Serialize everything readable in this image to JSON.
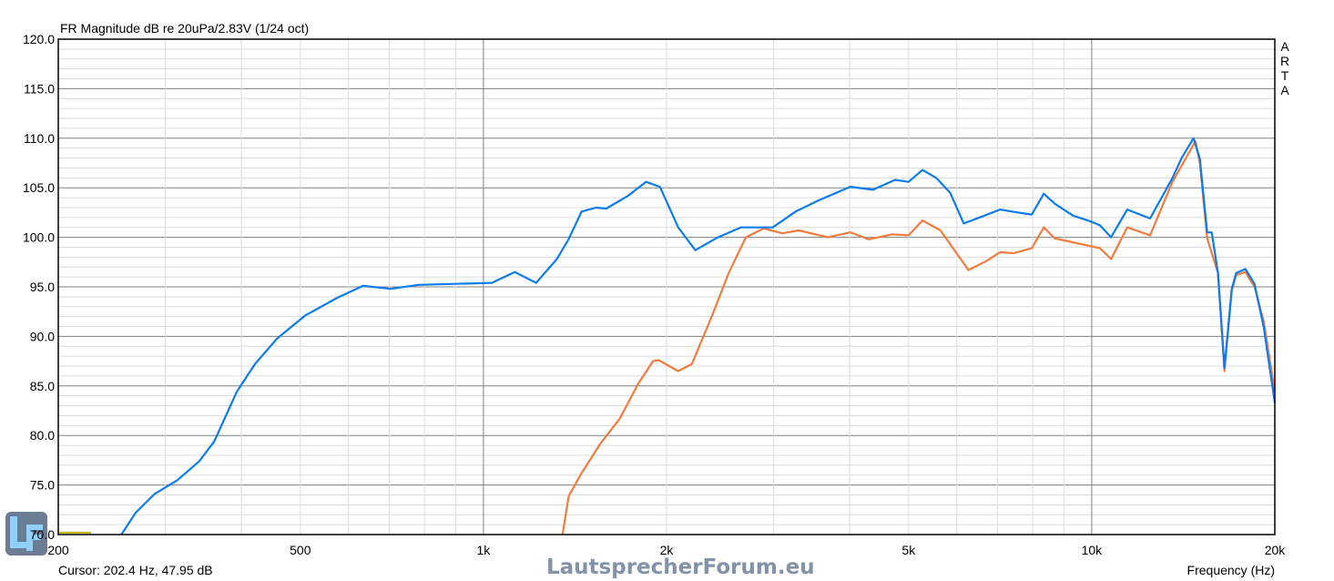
{
  "chart_data": {
    "type": "line",
    "title": "FR Magnitude dB re 20uPa/2.83V (1/24 oct)",
    "xlabel": "Frequency (Hz)",
    "ylabel": "",
    "x_scale": "log",
    "xlim": [
      200,
      20000
    ],
    "ylim": [
      70,
      120
    ],
    "grid": true,
    "x_ticks": [
      200,
      500,
      1000,
      2000,
      5000,
      10000,
      20000
    ],
    "x_tick_labels": [
      "200",
      "500",
      "1k",
      "2k",
      "5k",
      "10k",
      "20k"
    ],
    "y_ticks": [
      70,
      75,
      80,
      85,
      90,
      95,
      100,
      105,
      110,
      115,
      120
    ],
    "y_tick_labels": [
      "70.0",
      "75.0",
      "80.0",
      "85.0",
      "90.0",
      "95.0",
      "100.0",
      "105.0",
      "110.0",
      "115.0",
      "120.0"
    ],
    "watermark": "ARTA",
    "cursor_readout": "Cursor: 202.4 Hz, 47.95 dB",
    "series": [
      {
        "color": "#0a7cf0",
        "points": [
          [
            254,
            70
          ],
          [
            268,
            72.2
          ],
          [
            288,
            74.1
          ],
          [
            314,
            75.5
          ],
          [
            341,
            77.4
          ],
          [
            361,
            79.4
          ],
          [
            393,
            84.4
          ],
          [
            421,
            87.2
          ],
          [
            458,
            89.8
          ],
          [
            509,
            92.1
          ],
          [
            575,
            93.9
          ],
          [
            634,
            95.1
          ],
          [
            704,
            94.8
          ],
          [
            782,
            95.2
          ],
          [
            898,
            95.3
          ],
          [
            1032,
            95.4
          ],
          [
            1126,
            96.5
          ],
          [
            1221,
            95.4
          ],
          [
            1320,
            97.8
          ],
          [
            1380,
            99.8
          ],
          [
            1450,
            102.6
          ],
          [
            1531,
            103
          ],
          [
            1592,
            102.9
          ],
          [
            1730,
            104.2
          ],
          [
            1850,
            105.6
          ],
          [
            1950,
            105.1
          ],
          [
            2090,
            101
          ],
          [
            2230,
            98.7
          ],
          [
            2430,
            100
          ],
          [
            2650,
            101
          ],
          [
            2990,
            101
          ],
          [
            3260,
            102.6
          ],
          [
            3550,
            103.7
          ],
          [
            4010,
            105.1
          ],
          [
            4370,
            104.8
          ],
          [
            4750,
            105.8
          ],
          [
            5000,
            105.6
          ],
          [
            5270,
            106.8
          ],
          [
            5550,
            106
          ],
          [
            5850,
            104.5
          ],
          [
            6160,
            101.4
          ],
          [
            6600,
            102.1
          ],
          [
            7070,
            102.8
          ],
          [
            7570,
            102.5
          ],
          [
            7970,
            102.3
          ],
          [
            8340,
            104.4
          ],
          [
            8690,
            103.4
          ],
          [
            9310,
            102.2
          ],
          [
            9970,
            101.6
          ],
          [
            10320,
            101.2
          ],
          [
            10760,
            100
          ],
          [
            11440,
            102.8
          ],
          [
            12470,
            101.9
          ],
          [
            13580,
            106
          ],
          [
            14050,
            108
          ],
          [
            14700,
            110
          ],
          [
            15060,
            107.9
          ],
          [
            15480,
            100.5
          ],
          [
            15750,
            100.5
          ],
          [
            16130,
            96.4
          ],
          [
            16530,
            86.8
          ],
          [
            16990,
            94.8
          ],
          [
            17280,
            96.4
          ],
          [
            17890,
            96.8
          ],
          [
            18520,
            95.3
          ],
          [
            19180,
            90.9
          ],
          [
            20000,
            83.3
          ]
        ]
      },
      {
        "color": "#f47b3c",
        "points": [
          [
            1349,
            70
          ],
          [
            1381,
            73.9
          ],
          [
            1450,
            76.2
          ],
          [
            1558,
            79.2
          ],
          [
            1675,
            81.7
          ],
          [
            1800,
            85.3
          ],
          [
            1900,
            87.5
          ],
          [
            1940,
            87.6
          ],
          [
            2090,
            86.5
          ],
          [
            2200,
            87.2
          ],
          [
            2380,
            92.2
          ],
          [
            2530,
            96.4
          ],
          [
            2700,
            100
          ],
          [
            2890,
            100.9
          ],
          [
            3100,
            100.4
          ],
          [
            3300,
            100.7
          ],
          [
            3680,
            100
          ],
          [
            4010,
            100.5
          ],
          [
            4300,
            99.8
          ],
          [
            4700,
            100.3
          ],
          [
            5000,
            100.2
          ],
          [
            5270,
            101.7
          ],
          [
            5640,
            100.7
          ],
          [
            6270,
            96.7
          ],
          [
            6710,
            97.6
          ],
          [
            7070,
            98.5
          ],
          [
            7440,
            98.4
          ],
          [
            7970,
            98.9
          ],
          [
            8340,
            101
          ],
          [
            8690,
            99.9
          ],
          [
            9150,
            99.6
          ],
          [
            10320,
            98.9
          ],
          [
            10760,
            97.8
          ],
          [
            11440,
            101
          ],
          [
            12470,
            100.2
          ],
          [
            13580,
            105.6
          ],
          [
            14810,
            109.7
          ],
          [
            15060,
            107.5
          ],
          [
            15480,
            99.9
          ],
          [
            16130,
            96.4
          ],
          [
            16530,
            86.5
          ],
          [
            16990,
            94.6
          ],
          [
            17280,
            96.2
          ],
          [
            17890,
            96.5
          ],
          [
            18520,
            95
          ],
          [
            19180,
            91.5
          ],
          [
            20000,
            84.4
          ]
        ]
      }
    ],
    "cursor_marker": {
      "color": "#c0b000",
      "level_db": 70.2
    }
  },
  "watermark_logo": "LautsprecherForum.eu"
}
